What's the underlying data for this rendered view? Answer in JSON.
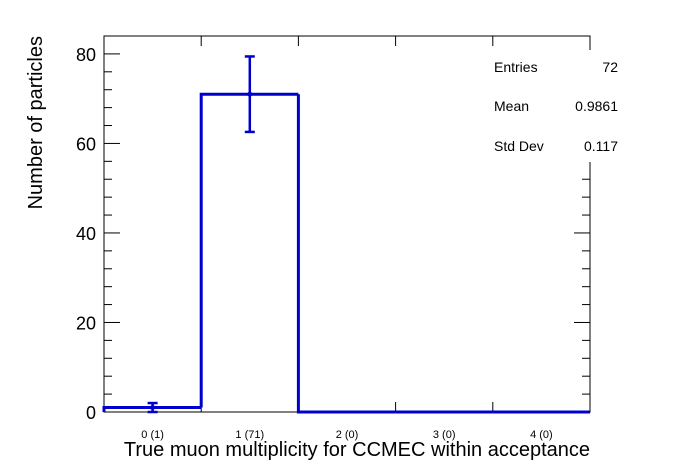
{
  "chart_data": {
    "type": "bar",
    "title": "",
    "xlabel": "True muon multiplicity for CCMEC within acceptance",
    "ylabel": "Number of particles",
    "categories": [
      "0 (1)",
      "1 (71)",
      "2 (0)",
      "3 (0)",
      "4 (0)"
    ],
    "values": [
      1,
      71,
      0,
      0,
      0
    ],
    "errors": [
      1,
      8.43,
      0,
      0,
      0
    ],
    "ylim": [
      0,
      84
    ],
    "yticks": [
      0,
      20,
      40,
      60,
      80
    ],
    "color": "#0000cc",
    "legend": "none",
    "grid": false
  },
  "stats": {
    "entries_label": "Entries",
    "entries_value": "72",
    "mean_label": "Mean",
    "mean_value": "0.9861",
    "std_label": "Std Dev",
    "std_value": "0.117"
  }
}
